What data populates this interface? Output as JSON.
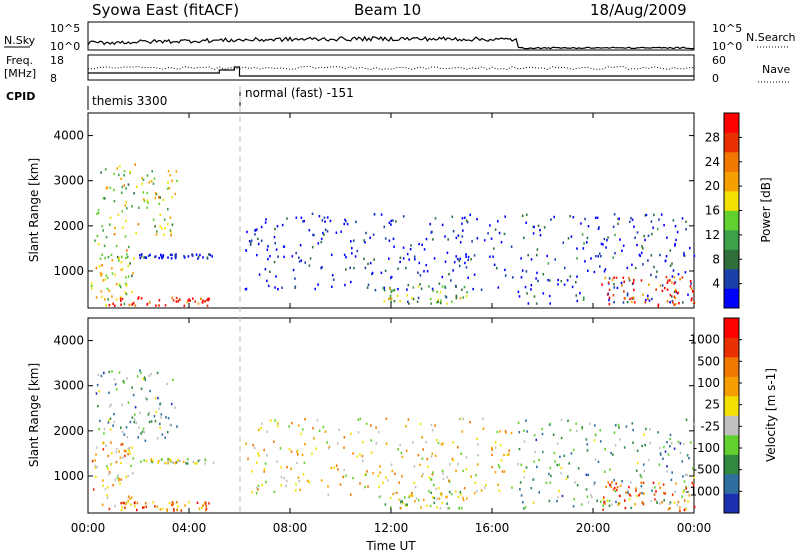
{
  "header": {
    "title": "Syowa East (fitACF)",
    "beam": "Beam 10",
    "date": "18/Aug/2009"
  },
  "panels": {
    "sky": {
      "left_label": "N.Sky",
      "right_label": "N.Search",
      "left_ticks": [
        "10^5",
        "10^0"
      ],
      "right_ticks": [
        "10^5",
        "10^0"
      ]
    },
    "freq": {
      "left_label_line1": "Freq.",
      "left_label_line2": "[MHz]",
      "left_ticks": [
        "18",
        "8"
      ],
      "right_label": "Nave",
      "right_ticks": [
        "60",
        "0"
      ]
    },
    "cpid": {
      "label": "CPID",
      "segments": [
        {
          "start_hour": 0,
          "end_hour": 6,
          "label": "themis 3300"
        },
        {
          "start_hour": 6,
          "end_hour": 24,
          "label": "normal (fast) -151"
        }
      ]
    }
  },
  "chart_data": [
    {
      "type": "heatmap",
      "name": "power",
      "ylabel": "Slant Range [km]",
      "xlabel": "",
      "ylim": [
        180,
        4500
      ],
      "xlim": [
        0,
        24
      ],
      "y_ticks": [
        1000,
        2000,
        3000,
        4000
      ],
      "colorbar": {
        "label": "Power [dB]",
        "ticks": [
          "4",
          "8",
          "12",
          "16",
          "20",
          "24",
          "28"
        ],
        "colors": [
          "#0000ff",
          "#1c3fa8",
          "#2f6f3a",
          "#3fa04a",
          "#62d12f",
          "#f2e000",
          "#f5a000",
          "#f07800",
          "#e83000",
          "#ff0000"
        ]
      },
      "regions": [
        {
          "t0": 0.1,
          "t1": 1.8,
          "r0": 250,
          "r1": 1800,
          "level": 0.5
        },
        {
          "t0": 0.8,
          "t1": 4.8,
          "r0": 250,
          "r1": 450,
          "level": 0.9
        },
        {
          "t0": 2.0,
          "t1": 5.0,
          "r0": 1300,
          "r1": 1400,
          "level": 0.05
        },
        {
          "t0": 0.3,
          "t1": 3.5,
          "r0": 1800,
          "r1": 3400,
          "level": 0.5
        },
        {
          "t0": 6.2,
          "t1": 16.8,
          "r0": 600,
          "r1": 2300,
          "level": 0.05
        },
        {
          "t0": 11.5,
          "t1": 15.0,
          "r0": 300,
          "r1": 700,
          "level": 0.4
        },
        {
          "t0": 17.0,
          "t1": 24.0,
          "r0": 300,
          "r1": 2300,
          "level": 0.1
        },
        {
          "t0": 20.3,
          "t1": 24.0,
          "r0": 250,
          "r1": 900,
          "level": 0.85
        }
      ]
    },
    {
      "type": "heatmap",
      "name": "velocity",
      "ylabel": "Slant Range [km]",
      "xlabel": "Time UT",
      "ylim": [
        180,
        4500
      ],
      "xlim": [
        0,
        24
      ],
      "y_ticks": [
        1000,
        2000,
        3000,
        4000
      ],
      "x_ticks": [
        "00:00",
        "04:00",
        "08:00",
        "12:00",
        "16:00",
        "20:00",
        "00:00"
      ],
      "colorbar": {
        "label": "Velocity [m s-1]",
        "ticks": [
          "1000",
          "500",
          "100",
          "25",
          "-25",
          "-100",
          "-500",
          "-1000"
        ],
        "colors": [
          "#1c2fb0",
          "#2f6fa0",
          "#2f8a40",
          "#62d12f",
          "#c0c0c0",
          "#f2e000",
          "#f5a000",
          "#f07800",
          "#e83000",
          "#ff0000"
        ]
      },
      "regions": [
        {
          "t0": 0.1,
          "t1": 1.8,
          "r0": 250,
          "r1": 1800,
          "level": 0.6
        },
        {
          "t0": 0.8,
          "t1": 4.8,
          "r0": 250,
          "r1": 450,
          "level": 0.75
        },
        {
          "t0": 2.0,
          "t1": 5.0,
          "r0": 1300,
          "r1": 1400,
          "level": 0.45
        },
        {
          "t0": 0.3,
          "t1": 3.5,
          "r0": 1800,
          "r1": 3400,
          "level": 0.3
        },
        {
          "t0": 6.2,
          "t1": 16.8,
          "r0": 600,
          "r1": 2300,
          "level": 0.55
        },
        {
          "t0": 11.5,
          "t1": 15.0,
          "r0": 300,
          "r1": 700,
          "level": 0.45
        },
        {
          "t0": 17.0,
          "t1": 24.0,
          "r0": 300,
          "r1": 2300,
          "level": 0.3
        },
        {
          "t0": 20.3,
          "t1": 24.0,
          "r0": 250,
          "r1": 900,
          "level": 0.75
        }
      ]
    }
  ]
}
